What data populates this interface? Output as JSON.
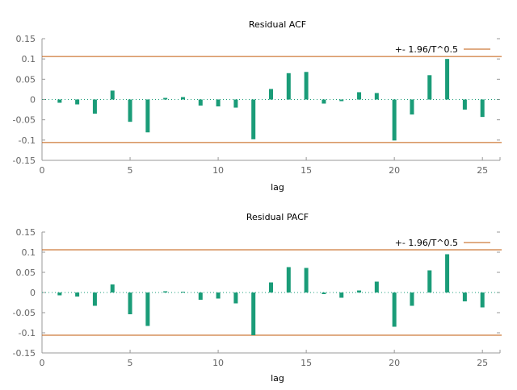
{
  "chart_data": [
    {
      "type": "bar",
      "title": "Residual ACF",
      "xlabel": "lag",
      "ylabel": "",
      "xlim": [
        0,
        26
      ],
      "ylim": [
        -0.15,
        0.15
      ],
      "xticks": [
        "0",
        "5",
        "10",
        "15",
        "20",
        "25"
      ],
      "yticks": [
        "-0.15",
        "-0.1",
        "-0.05",
        "0",
        "0.05",
        "0.1",
        "0.15"
      ],
      "bound": 0.106,
      "bound_label": "+- 1.96/T^0.5",
      "legend_position": "top-right",
      "colors": {
        "bar": "#1a9c78",
        "bound": "#c25a0a",
        "zero": "#1a9c78"
      },
      "x": [
        1,
        2,
        3,
        4,
        5,
        6,
        7,
        8,
        9,
        10,
        11,
        12,
        13,
        14,
        15,
        16,
        17,
        18,
        19,
        20,
        21,
        22,
        23,
        24,
        25
      ],
      "values": [
        -0.008,
        -0.012,
        -0.035,
        0.022,
        -0.055,
        -0.081,
        0.004,
        0.006,
        -0.015,
        -0.017,
        -0.02,
        -0.098,
        0.026,
        0.065,
        0.068,
        -0.01,
        -0.004,
        0.018,
        0.016,
        -0.101,
        -0.037,
        0.06,
        0.1,
        -0.025,
        -0.043
      ]
    },
    {
      "type": "bar",
      "title": "Residual PACF",
      "xlabel": "lag",
      "ylabel": "",
      "xlim": [
        0,
        26
      ],
      "ylim": [
        -0.15,
        0.15
      ],
      "xticks": [
        "0",
        "5",
        "10",
        "15",
        "20",
        "25"
      ],
      "yticks": [
        "-0.15",
        "-0.1",
        "-0.05",
        "0",
        "0.05",
        "0.1",
        "0.15"
      ],
      "bound": 0.106,
      "bound_label": "+- 1.96/T^0.5",
      "legend_position": "top-right",
      "colors": {
        "bar": "#1a9c78",
        "bound": "#c25a0a",
        "zero": "#1a9c78"
      },
      "x": [
        1,
        2,
        3,
        4,
        5,
        6,
        7,
        8,
        9,
        10,
        11,
        12,
        13,
        14,
        15,
        16,
        17,
        18,
        19,
        20,
        21,
        22,
        23,
        24,
        25
      ],
      "values": [
        -0.007,
        -0.01,
        -0.033,
        0.02,
        -0.054,
        -0.083,
        0.003,
        0.002,
        -0.018,
        -0.015,
        -0.027,
        -0.106,
        0.025,
        0.063,
        0.061,
        -0.004,
        -0.013,
        0.005,
        0.027,
        -0.085,
        -0.033,
        0.055,
        0.095,
        -0.022,
        -0.037
      ]
    }
  ]
}
